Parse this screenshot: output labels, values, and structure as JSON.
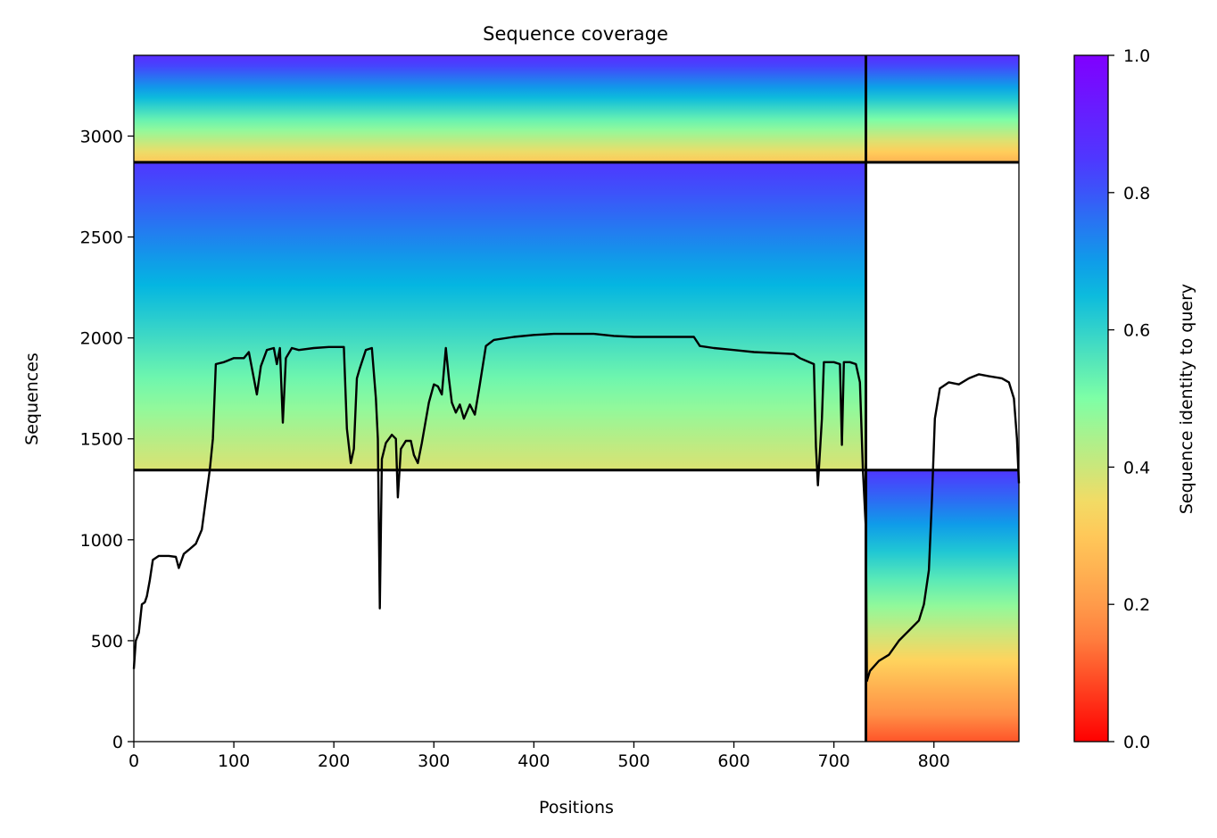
{
  "chart_data": {
    "type": "heatmap",
    "title": "Sequence coverage",
    "xlabel": "Positions",
    "ylabel": "Sequences",
    "xlim": [
      0,
      885
    ],
    "ylim": [
      0,
      3400
    ],
    "x_ticks": [
      0,
      100,
      200,
      300,
      400,
      500,
      600,
      700,
      800
    ],
    "y_ticks": [
      0,
      500,
      1000,
      1500,
      2000,
      2500,
      3000
    ],
    "colorbar": {
      "label": "Sequence identity to query",
      "range": [
        0,
        1
      ],
      "ticks": [
        "0.0",
        "0.2",
        "0.4",
        "0.6",
        "0.8",
        "1.0"
      ],
      "colormap": "rainbow",
      "colors": [
        "#ff0000",
        "#ff8c45",
        "#ffd75e",
        "#7effa6",
        "#00b4e3",
        "#4a3dff",
        "#8000ff"
      ]
    },
    "divider_lines": {
      "vertical_x": [
        732
      ],
      "horizontal_y": [
        1345,
        2870
      ]
    },
    "blocks": [
      {
        "x_range": [
          0,
          732
        ],
        "y_range": [
          2870,
          3400
        ],
        "identity_top": 0.88,
        "identity_bottom": 0.3
      },
      {
        "x_range": [
          732,
          885
        ],
        "y_range": [
          2870,
          3400
        ],
        "identity_top": 0.88,
        "identity_bottom": 0.25
      },
      {
        "x_range": [
          0,
          732
        ],
        "y_range": [
          1345,
          2870
        ],
        "identity_top": 0.85,
        "identity_bottom": 0.38
      },
      {
        "x_range": [
          732,
          885
        ],
        "y_range": [
          0,
          1345
        ],
        "identity_top": 0.85,
        "identity_bottom": 0.1
      }
    ],
    "coverage_line": {
      "color": "#000000",
      "points": [
        [
          0,
          360
        ],
        [
          2,
          500
        ],
        [
          5,
          540
        ],
        [
          8,
          680
        ],
        [
          11,
          690
        ],
        [
          13,
          720
        ],
        [
          16,
          800
        ],
        [
          19,
          900
        ],
        [
          25,
          920
        ],
        [
          35,
          920
        ],
        [
          42,
          915
        ],
        [
          45,
          860
        ],
        [
          50,
          930
        ],
        [
          55,
          950
        ],
        [
          62,
          980
        ],
        [
          68,
          1050
        ],
        [
          72,
          1200
        ],
        [
          76,
          1350
        ],
        [
          79,
          1500
        ],
        [
          82,
          1870
        ],
        [
          90,
          1880
        ],
        [
          100,
          1900
        ],
        [
          110,
          1900
        ],
        [
          115,
          1930
        ],
        [
          120,
          1800
        ],
        [
          123,
          1720
        ],
        [
          127,
          1860
        ],
        [
          133,
          1940
        ],
        [
          140,
          1950
        ],
        [
          143,
          1870
        ],
        [
          146,
          1950
        ],
        [
          149,
          1580
        ],
        [
          152,
          1900
        ],
        [
          158,
          1950
        ],
        [
          165,
          1940
        ],
        [
          180,
          1950
        ],
        [
          195,
          1955
        ],
        [
          210,
          1955
        ],
        [
          213,
          1550
        ],
        [
          217,
          1380
        ],
        [
          220,
          1450
        ],
        [
          223,
          1800
        ],
        [
          226,
          1850
        ],
        [
          232,
          1940
        ],
        [
          238,
          1950
        ],
        [
          242,
          1700
        ],
        [
          244,
          1500
        ],
        [
          246,
          660
        ],
        [
          248,
          1400
        ],
        [
          252,
          1480
        ],
        [
          258,
          1520
        ],
        [
          262,
          1500
        ],
        [
          264,
          1210
        ],
        [
          267,
          1450
        ],
        [
          272,
          1490
        ],
        [
          277,
          1490
        ],
        [
          280,
          1420
        ],
        [
          284,
          1380
        ],
        [
          288,
          1480
        ],
        [
          295,
          1680
        ],
        [
          300,
          1770
        ],
        [
          304,
          1760
        ],
        [
          308,
          1720
        ],
        [
          312,
          1950
        ],
        [
          315,
          1800
        ],
        [
          318,
          1680
        ],
        [
          322,
          1630
        ],
        [
          326,
          1670
        ],
        [
          330,
          1600
        ],
        [
          336,
          1670
        ],
        [
          341,
          1620
        ],
        [
          346,
          1770
        ],
        [
          352,
          1960
        ],
        [
          360,
          1990
        ],
        [
          380,
          2005
        ],
        [
          400,
          2015
        ],
        [
          420,
          2020
        ],
        [
          440,
          2020
        ],
        [
          460,
          2020
        ],
        [
          480,
          2010
        ],
        [
          500,
          2005
        ],
        [
          520,
          2005
        ],
        [
          540,
          2005
        ],
        [
          560,
          2005
        ],
        [
          566,
          1960
        ],
        [
          580,
          1950
        ],
        [
          600,
          1940
        ],
        [
          620,
          1930
        ],
        [
          640,
          1925
        ],
        [
          660,
          1920
        ],
        [
          666,
          1900
        ],
        [
          680,
          1870
        ],
        [
          682,
          1460
        ],
        [
          684,
          1270
        ],
        [
          688,
          1600
        ],
        [
          690,
          1880
        ],
        [
          700,
          1880
        ],
        [
          706,
          1870
        ],
        [
          708,
          1470
        ],
        [
          710,
          1880
        ],
        [
          716,
          1880
        ],
        [
          722,
          1870
        ],
        [
          726,
          1780
        ],
        [
          729,
          1350
        ],
        [
          732,
          1050
        ],
        [
          733,
          300
        ],
        [
          736,
          350
        ],
        [
          745,
          400
        ],
        [
          755,
          430
        ],
        [
          765,
          500
        ],
        [
          775,
          550
        ],
        [
          785,
          600
        ],
        [
          790,
          680
        ],
        [
          795,
          850
        ],
        [
          798,
          1200
        ],
        [
          801,
          1600
        ],
        [
          806,
          1750
        ],
        [
          815,
          1780
        ],
        [
          825,
          1770
        ],
        [
          835,
          1800
        ],
        [
          845,
          1820
        ],
        [
          855,
          1810
        ],
        [
          868,
          1800
        ],
        [
          875,
          1780
        ],
        [
          880,
          1700
        ],
        [
          883,
          1500
        ],
        [
          885,
          1280
        ]
      ]
    }
  }
}
